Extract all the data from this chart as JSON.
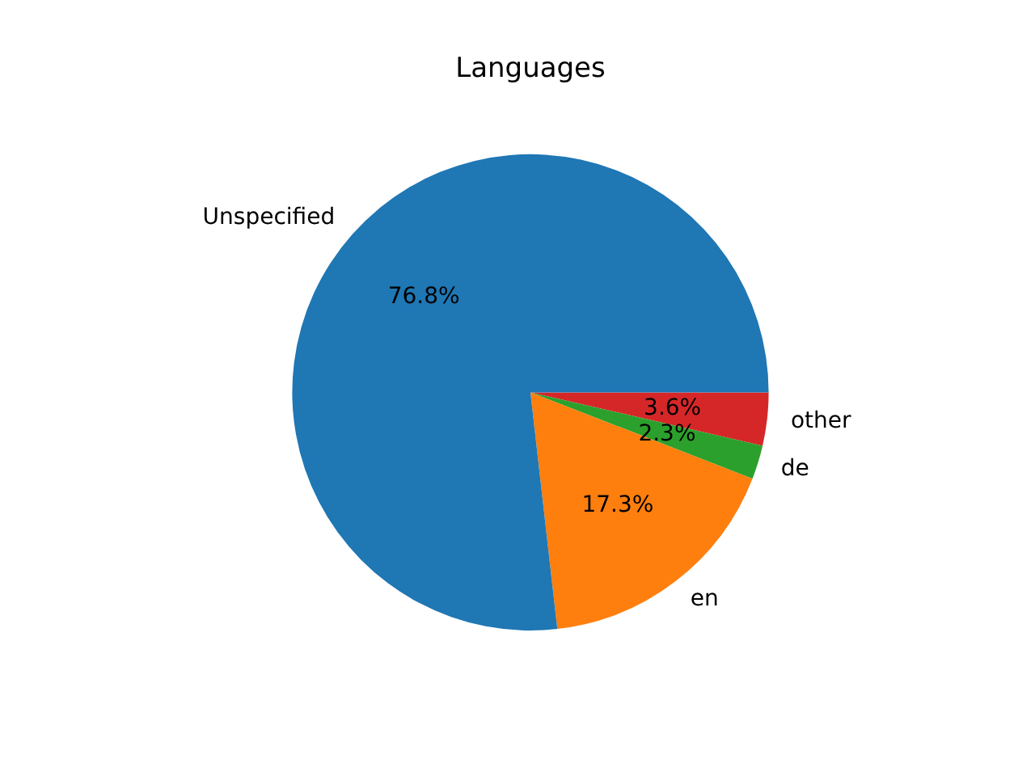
{
  "chart_data": {
    "type": "pie",
    "title": "Languages",
    "categories": [
      "Unspecified",
      "en",
      "de",
      "other"
    ],
    "values": [
      76.8,
      17.3,
      2.3,
      3.6
    ],
    "colors": [
      "#1f77b4",
      "#ff7f0e",
      "#2ca02c",
      "#d62728"
    ],
    "value_labels": [
      "76.8%",
      "17.3%",
      "2.3%",
      "3.6%"
    ],
    "legend": false
  }
}
